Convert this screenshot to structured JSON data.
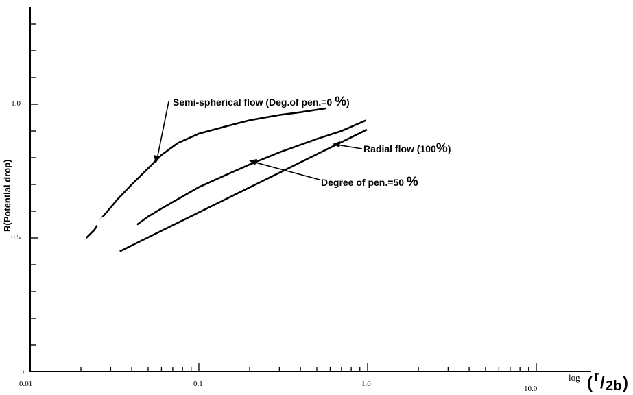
{
  "chart_data": {
    "type": "line",
    "x_scale": "log",
    "xlim": [
      0.01,
      20
    ],
    "ylim": [
      0,
      1.35
    ],
    "grid": false,
    "ylabel": "R(Potential drop)",
    "xlabel": {
      "prefix": "log",
      "paren_open": "(",
      "numerator": "r",
      "slash": "/",
      "denominator": "2b",
      "paren_close": ")"
    },
    "x_tick_labels": [
      {
        "value": 0.01,
        "label": "0.01"
      },
      {
        "value": 0.1,
        "label": "0.1"
      },
      {
        "value": 1.0,
        "label": "1.0"
      },
      {
        "value": 10.0,
        "label": "10.0"
      }
    ],
    "y_tick_labels": [
      {
        "value": 0,
        "label": "0"
      },
      {
        "value": 0.5,
        "label": "0.5"
      },
      {
        "value": 1.0,
        "label": "1.0"
      }
    ],
    "y_minor_ticks": [
      0.1,
      0.2,
      0.3,
      0.4,
      0.6,
      0.7,
      0.8,
      0.9,
      1.1,
      1.2,
      1.3
    ],
    "series": [
      {
        "id": "semi_spherical",
        "x": [
          0.0215,
          0.024,
          0.027,
          0.033,
          0.04,
          0.05,
          0.06,
          0.075,
          0.1,
          0.15,
          0.2,
          0.3,
          0.4,
          0.57
        ],
        "y": [
          0.5,
          0.53,
          0.58,
          0.645,
          0.7,
          0.76,
          0.81,
          0.855,
          0.89,
          0.92,
          0.94,
          0.96,
          0.97,
          0.985
        ]
      },
      {
        "id": "pen_50",
        "x": [
          0.043,
          0.05,
          0.06,
          0.08,
          0.1,
          0.15,
          0.2,
          0.3,
          0.5,
          0.7,
          0.98
        ],
        "y": [
          0.55,
          0.58,
          0.61,
          0.655,
          0.69,
          0.74,
          0.775,
          0.82,
          0.87,
          0.9,
          0.94
        ]
      },
      {
        "id": "radial",
        "x": [
          0.034,
          0.99
        ],
        "y": [
          0.45,
          0.905
        ]
      }
    ],
    "annotations": [
      {
        "id": "semi",
        "text": "Semi-spherical flow (Deg.of pen.=0 ",
        "suffix": "%",
        "close": ")"
      },
      {
        "id": "radial",
        "text": "Radial flow (100",
        "suffix": "%",
        "close": ")"
      },
      {
        "id": "pen50",
        "text": "Degree of pen.=50 ",
        "suffix": "%",
        "close": ""
      }
    ]
  }
}
